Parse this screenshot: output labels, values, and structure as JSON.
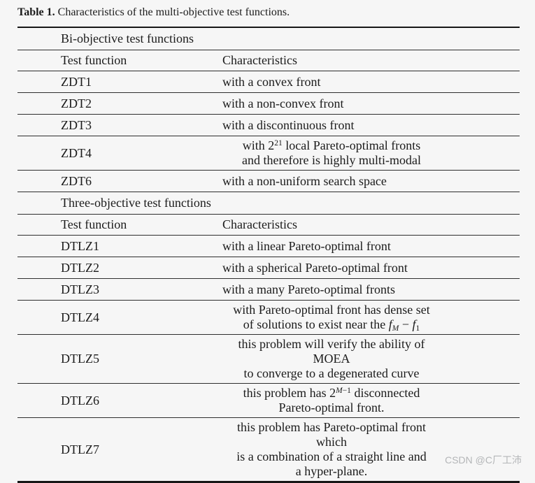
{
  "page": {
    "background_color": "#f6f6f6",
    "text_color": "#1b1b1b",
    "rule_color": "#2e2e2e",
    "watermark_color": "#b4b6b8"
  },
  "caption": {
    "label": "Table 1.",
    "text": " Characteristics of the multi-objective test functions."
  },
  "watermark": {
    "text": "CSDN @C厂工沛"
  },
  "table": {
    "columns": [
      "Test function",
      "Characteristics"
    ],
    "rows": [
      {
        "type": "section",
        "label": "Bi-objective test functions"
      },
      {
        "type": "colheader"
      },
      {
        "type": "data",
        "func": "ZDT1",
        "align": "left",
        "lines": [
          [
            {
              "t": "with a convex front"
            }
          ]
        ]
      },
      {
        "type": "data",
        "func": "ZDT2",
        "align": "left",
        "lines": [
          [
            {
              "t": "with a non-convex front"
            }
          ]
        ]
      },
      {
        "type": "data",
        "func": "ZDT3",
        "align": "left",
        "lines": [
          [
            {
              "t": "with a discontinuous front"
            }
          ]
        ]
      },
      {
        "type": "data",
        "func": "ZDT4",
        "align": "center",
        "lines": [
          [
            {
              "t": "with 2"
            },
            {
              "t": "21",
              "s": "sup"
            },
            {
              "t": " local Pareto-optimal fronts"
            }
          ],
          [
            {
              "t": "and therefore is highly multi-modal"
            }
          ]
        ]
      },
      {
        "type": "data",
        "func": "ZDT6",
        "align": "left",
        "lines": [
          [
            {
              "t": "with a non-uniform search space"
            }
          ]
        ]
      },
      {
        "type": "section",
        "label": "Three-objective test functions"
      },
      {
        "type": "colheader"
      },
      {
        "type": "data",
        "func": "DTLZ1",
        "align": "left",
        "lines": [
          [
            {
              "t": "with a linear Pareto-optimal front"
            }
          ]
        ]
      },
      {
        "type": "data",
        "func": "DTLZ2",
        "align": "left",
        "lines": [
          [
            {
              "t": "with a spherical Pareto-optimal front"
            }
          ]
        ]
      },
      {
        "type": "data",
        "func": "DTLZ3",
        "align": "left",
        "lines": [
          [
            {
              "t": "with a many Pareto-optimal fronts"
            }
          ]
        ]
      },
      {
        "type": "data",
        "func": "DTLZ4",
        "align": "center",
        "lines": [
          [
            {
              "t": "with Pareto-optimal front has dense set"
            }
          ],
          [
            {
              "t": "of solutions to exist near the "
            },
            {
              "t": "f",
              "s": "i"
            },
            {
              "t": "M",
              "s": "isub"
            },
            {
              "t": " − "
            },
            {
              "t": "f",
              "s": "i"
            },
            {
              "t": "1",
              "s": "sub"
            }
          ]
        ]
      },
      {
        "type": "data",
        "func": "DTLZ5",
        "align": "center",
        "lines": [
          [
            {
              "t": "this problem will verify the ability of MOEA"
            }
          ],
          [
            {
              "t": "to converge to a degenerated curve"
            }
          ]
        ]
      },
      {
        "type": "data",
        "func": "DTLZ6",
        "align": "center",
        "lines": [
          [
            {
              "t": "this problem has 2"
            },
            {
              "t": "M",
              "s": "isup"
            },
            {
              "t": "−1",
              "s": "sup"
            },
            {
              "t": " disconnected"
            }
          ],
          [
            {
              "t": "Pareto-optimal front."
            }
          ]
        ]
      },
      {
        "type": "data",
        "func": "DTLZ7",
        "align": "center",
        "lines": [
          [
            {
              "t": "this problem has Pareto-optimal front which"
            }
          ],
          [
            {
              "t": "is a combination of a straight line and"
            }
          ],
          [
            {
              "t": "a hyper-plane."
            }
          ]
        ]
      }
    ]
  }
}
